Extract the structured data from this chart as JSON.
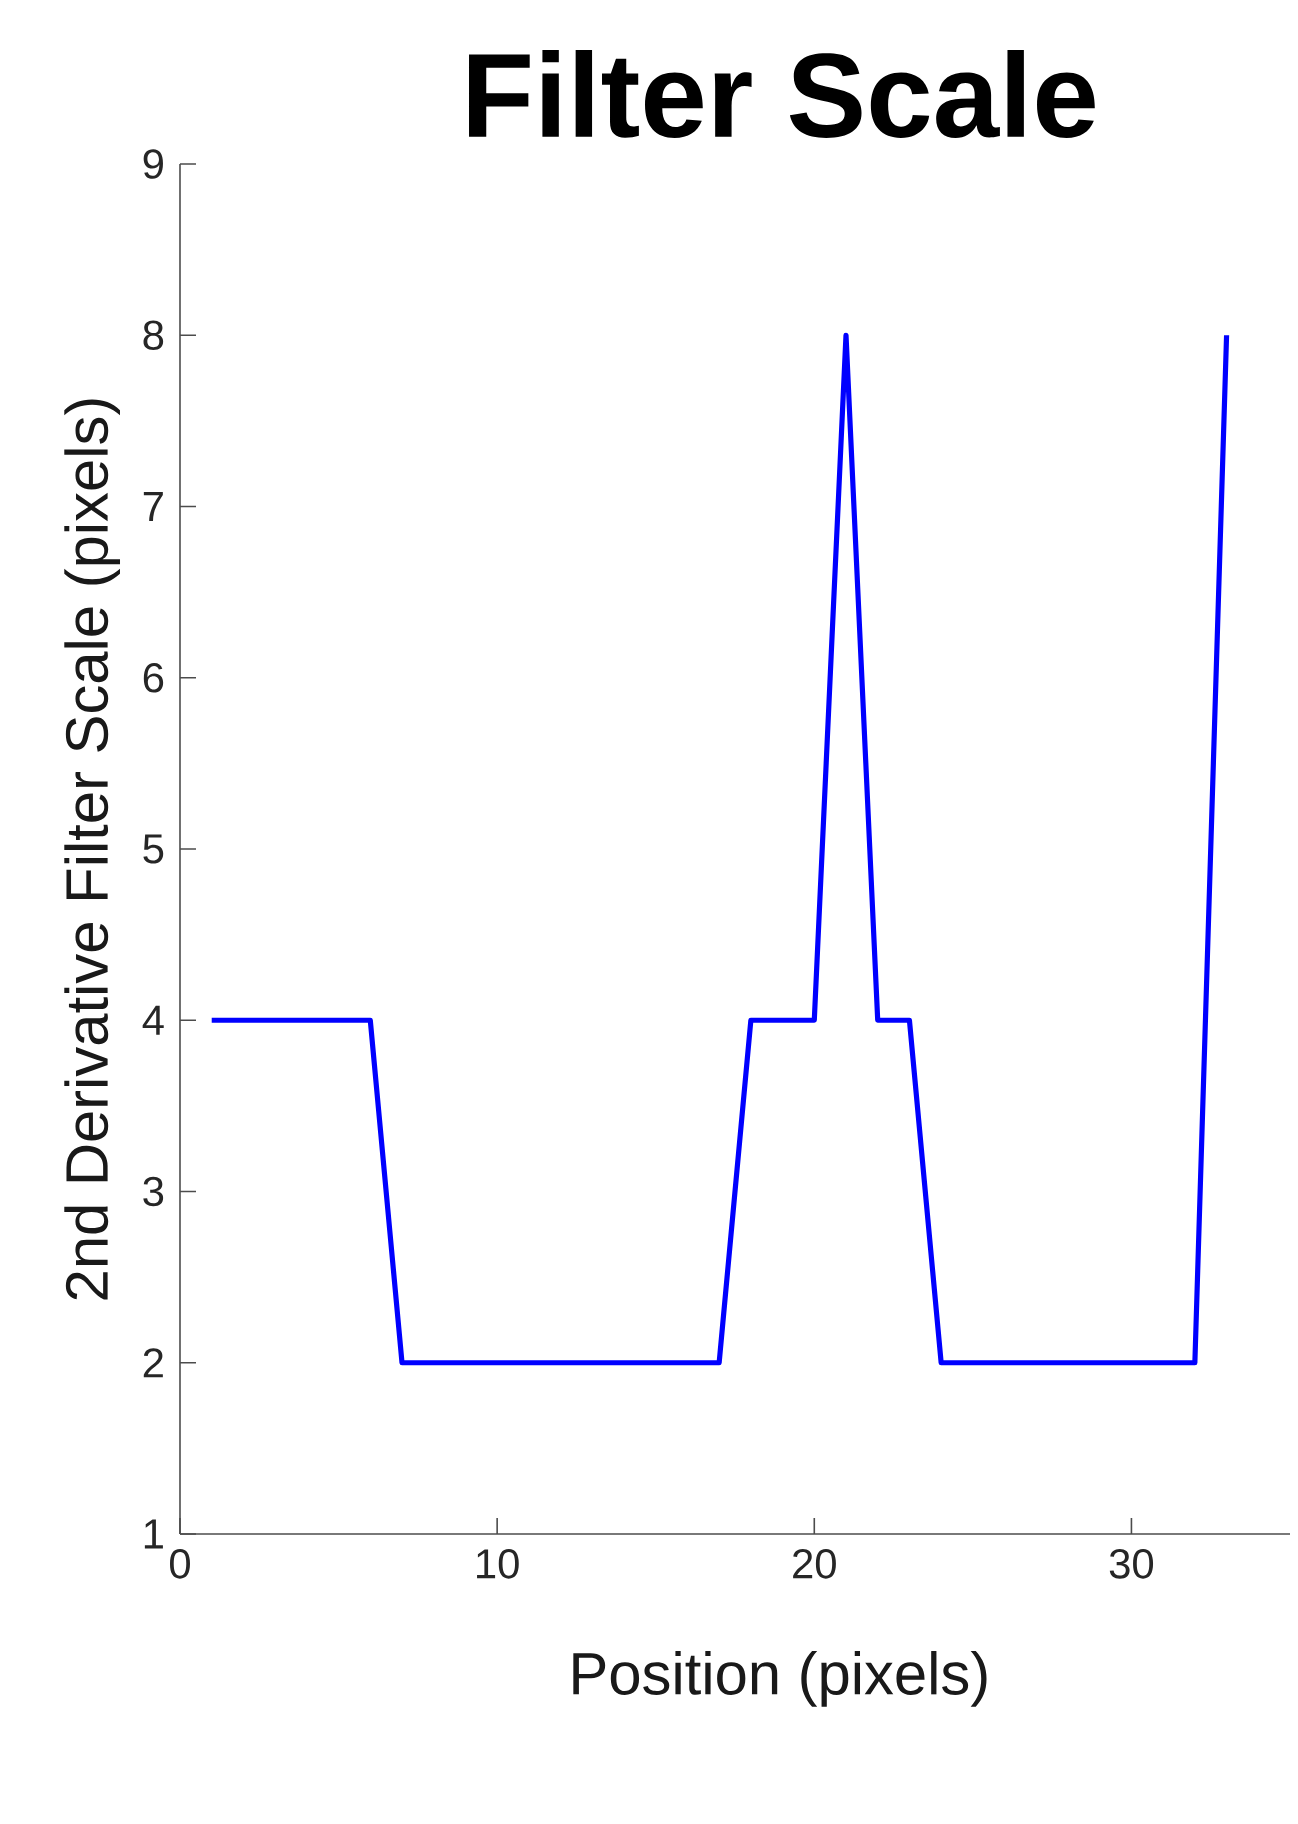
{
  "chart_data": {
    "type": "line",
    "title": "Filter Scale",
    "xlabel": "Position (pixels)",
    "ylabel": "2nd Derivative Filter Scale (pixels)",
    "x": [
      1,
      2,
      3,
      4,
      5,
      6,
      7,
      8,
      9,
      10,
      11,
      12,
      13,
      14,
      15,
      16,
      17,
      18,
      19,
      20,
      21,
      22,
      23,
      24,
      25,
      26,
      27,
      28,
      29,
      30,
      31,
      32,
      33
    ],
    "series": [
      {
        "color": "#0000ff",
        "values": [
          4,
          4,
          4,
          4,
          4,
          4,
          2,
          2,
          2,
          2,
          2,
          2,
          2,
          2,
          2,
          2,
          2,
          4,
          4,
          4,
          8,
          4,
          4,
          2,
          2,
          2,
          2,
          2,
          2,
          2,
          2,
          2,
          8
        ]
      }
    ],
    "xlim": [
      0,
      35
    ],
    "ylim": [
      1,
      9
    ],
    "xticks": [
      0,
      10,
      20,
      30
    ],
    "yticks": [
      1,
      2,
      3,
      4,
      5,
      6,
      7,
      8,
      9
    ],
    "grid": false,
    "marker": "none",
    "line_style": "solid"
  }
}
